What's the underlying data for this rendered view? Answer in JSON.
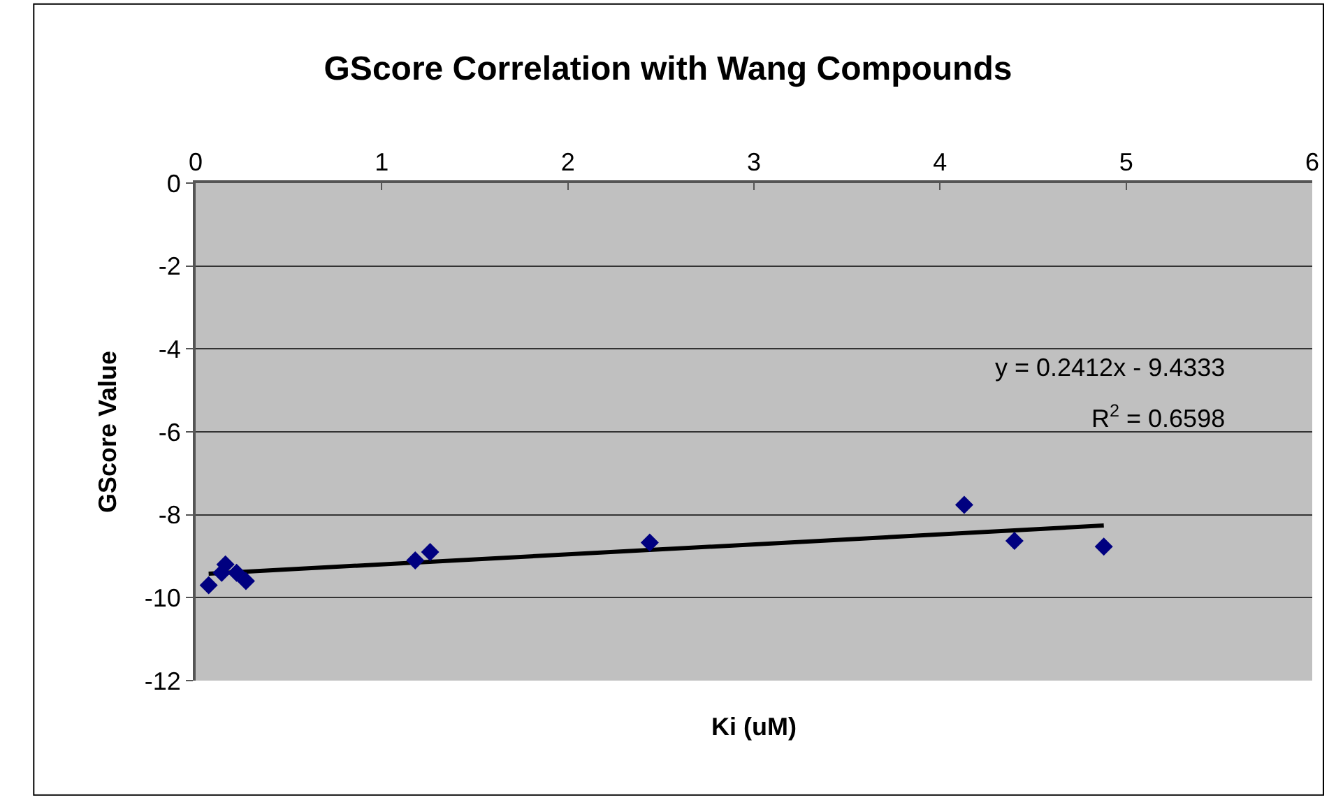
{
  "chart_data": {
    "type": "scatter",
    "title": "GScore Correlation with Wang Compounds",
    "xlabel": "Ki (uM)",
    "ylabel": "GScore Value",
    "xlim": [
      0,
      6
    ],
    "xticks": [
      0,
      1,
      2,
      3,
      4,
      5,
      6
    ],
    "ylim": [
      -12,
      0
    ],
    "yticks": [
      -12,
      -10,
      -8,
      -6,
      -4,
      -2,
      0
    ],
    "grid": "y",
    "marker": "diamond",
    "series": [
      {
        "color": "#000080",
        "x": [
          0.07,
          0.14,
          0.16,
          0.22,
          0.27,
          1.18,
          1.26,
          2.44,
          4.13,
          4.4,
          4.88
        ],
        "values": [
          -9.7,
          -9.4,
          -9.2,
          -9.4,
          -9.6,
          -9.1,
          -8.9,
          -8.67,
          -7.76,
          -8.63,
          -8.77
        ]
      },
      {
        "type": "line",
        "color": "#000000",
        "marker": "none",
        "line_style": "solid",
        "x": [
          0.07,
          4.88
        ],
        "values": [
          -9.42,
          -8.26
        ]
      }
    ],
    "annotations": [
      "y = 0.2412x - 9.4333",
      "R$^{2}$ = 0.6598"
    ]
  }
}
